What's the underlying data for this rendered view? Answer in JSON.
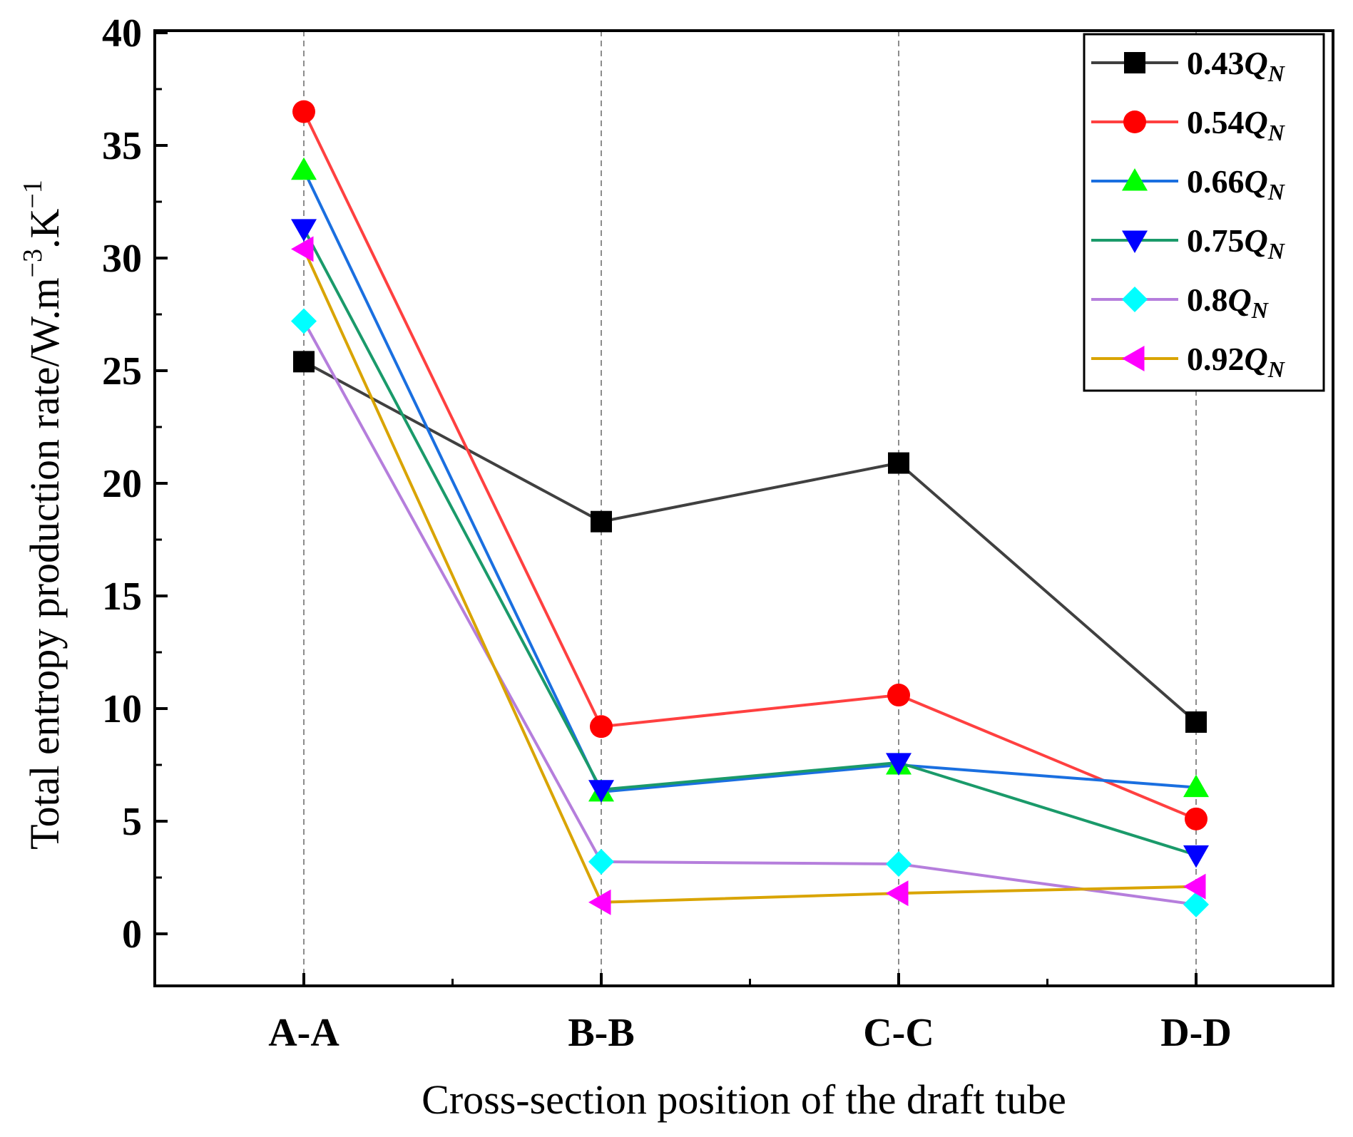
{
  "chart_data": {
    "type": "line",
    "title": "",
    "xlabel": "Cross-section position of the draft tube",
    "ylabel": "Total entropy production rate/W.m",
    "ylabel_sup1": "−3",
    "ylabel_mid": ".K",
    "ylabel_sup2": "−1",
    "categories": [
      "A-A",
      "B-B",
      "C-C",
      "D-D"
    ],
    "ylim": [
      -2.4,
      40
    ],
    "yticks": [
      0,
      5,
      10,
      15,
      20,
      25,
      30,
      35,
      40
    ],
    "grid": "vertical-dashed",
    "legend_position": "top-right",
    "series": [
      {
        "name": "0.43Q_N",
        "label_num": "0.43",
        "label_var": "Q",
        "label_sub": "N",
        "color": "#404040",
        "marker": "square",
        "values": [
          25.4,
          18.3,
          20.9,
          9.4
        ]
      },
      {
        "name": "0.54Q_N",
        "label_num": "0.54",
        "label_var": "Q",
        "label_sub": "N",
        "color": "#ff4040",
        "marker": "circle",
        "marker_color": "#ff0000",
        "values": [
          36.5,
          9.2,
          10.6,
          5.1
        ]
      },
      {
        "name": "0.66Q_N",
        "label_num": "0.66",
        "label_var": "Q",
        "label_sub": "N",
        "color": "#1a6fe0",
        "marker": "triangle-up",
        "marker_color": "#00ff00",
        "values": [
          33.9,
          6.3,
          7.5,
          6.5
        ]
      },
      {
        "name": "0.75Q_N",
        "label_num": "0.75",
        "label_var": "Q",
        "label_sub": "N",
        "color": "#1a9a6a",
        "marker": "triangle-down",
        "marker_color": "#0000ff",
        "values": [
          31.3,
          6.4,
          7.6,
          3.5
        ]
      },
      {
        "name": "0.8Q_N",
        "label_num": "0.8",
        "label_var": "Q",
        "label_sub": "N",
        "color": "#b57edc",
        "marker": "diamond",
        "marker_color": "#00ffff",
        "values": [
          27.2,
          3.2,
          3.1,
          1.3
        ]
      },
      {
        "name": "0.92Q_N",
        "label_num": "0.92",
        "label_var": "Q",
        "label_sub": "N",
        "color": "#d9a400",
        "marker": "triangle-left",
        "marker_color": "#ff00ff",
        "values": [
          30.4,
          1.4,
          1.8,
          2.1
        ]
      }
    ]
  }
}
